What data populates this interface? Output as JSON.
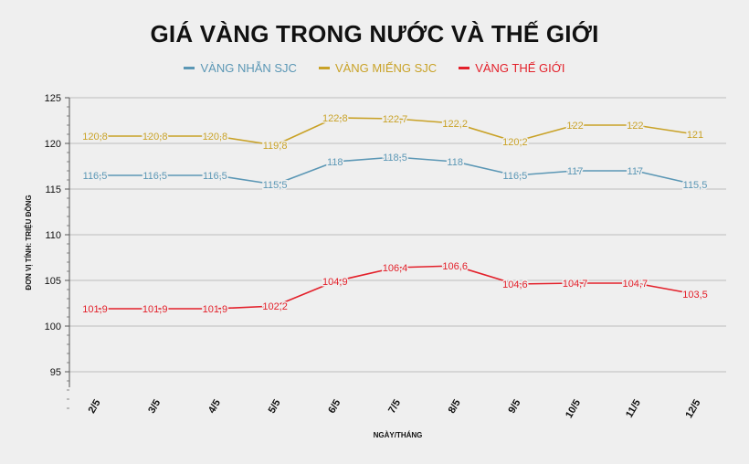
{
  "chart_data": {
    "type": "line",
    "title": "GIÁ VÀNG TRONG NƯỚC VÀ THẾ GIỚI",
    "xlabel": "NGÀY/THÁNG",
    "ylabel": "ĐƠN VỊ TÍNH: TRIỆU ĐỒNG",
    "categories": [
      "2/5",
      "3/5",
      "4/5",
      "5/5",
      "6/5",
      "7/5",
      "8/5",
      "9/5",
      "10/5",
      "11/5",
      "12/5"
    ],
    "ylim": [
      90,
      125
    ],
    "yticks": [
      "95",
      "100",
      "105",
      "110",
      "115",
      "120",
      "125"
    ],
    "ytick_values": [
      95,
      100,
      105,
      110,
      115,
      120,
      125
    ],
    "grid": true,
    "legend": "top-center",
    "series": [
      {
        "name": "VÀNG NHẪN SJC",
        "color": "#5b97b5",
        "values": [
          116.5,
          116.5,
          116.5,
          115.5,
          118,
          118.5,
          118,
          116.5,
          117,
          117,
          115.5
        ],
        "labels": [
          "116,5",
          "116,5",
          "116,5",
          "115,5",
          "118",
          "118,5",
          "118",
          "116,5",
          "117",
          "117",
          "115,5"
        ]
      },
      {
        "name": "VÀNG MIẾNG SJC",
        "color": "#c9a227",
        "values": [
          120.8,
          120.8,
          120.8,
          119.8,
          122.8,
          122.7,
          122.2,
          120.2,
          122,
          122,
          121
        ],
        "labels": [
          "120,8",
          "120,8",
          "120,8",
          "119,8",
          "122,8",
          "122,7",
          "122,2",
          "120,2",
          "122",
          "122",
          "121"
        ]
      },
      {
        "name": "VÀNG THẾ GIỚI",
        "color": "#e3202a",
        "values": [
          101.9,
          101.9,
          101.9,
          102.2,
          104.9,
          106.4,
          106.6,
          104.6,
          104.7,
          104.7,
          103.5
        ],
        "labels": [
          "101,9",
          "101,9",
          "101,9",
          "102,2",
          "104,9",
          "106,4",
          "106,6",
          "104,6",
          "104,7",
          "104,7",
          "103,5"
        ]
      }
    ]
  }
}
